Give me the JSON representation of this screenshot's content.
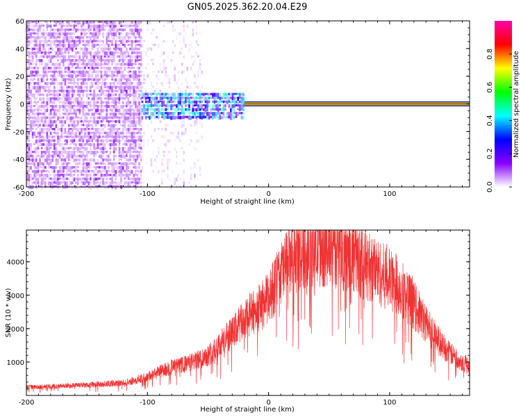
{
  "page": {
    "title": "GN05.2025.362.20.04.E29"
  },
  "chart_data": [
    {
      "type": "heatmap",
      "title": "GN05.2025.362.20.04.E29",
      "xlabel": "Height of straight line (km)",
      "ylabel": "Frequency (Hz)",
      "xlim": [
        -200,
        166
      ],
      "ylim": [
        -60,
        60
      ],
      "xticks": [
        -200,
        -100,
        0,
        100
      ],
      "xtick_labels": [
        "-200",
        "-100",
        "0",
        "100"
      ],
      "yticks": [
        -60,
        -40,
        -20,
        0,
        20,
        40,
        60
      ],
      "ytick_labels": [
        "-60",
        "-40",
        "-20",
        "0",
        "20",
        "40",
        "60"
      ],
      "grid": false,
      "colorbar": {
        "label": "Normalized spectral amplitude",
        "range": [
          0,
          1
        ],
        "ticks": [
          0.0,
          0.2,
          0.4,
          0.6,
          0.8
        ],
        "tick_labels": [
          "0.0",
          "0.2",
          "0.4",
          "0.6",
          "0.8"
        ],
        "colormap": [
          "#ffffff",
          "#8800ff",
          "#0000ff",
          "#00ffff",
          "#00ff00",
          "#ffff00",
          "#ff0000",
          "#ff00aa"
        ]
      },
      "regions": [
        {
          "name": "noise",
          "x_range": [
            -200,
            -105
          ],
          "y_range": [
            -60,
            60
          ],
          "amplitude": 0.08,
          "density": 0.85
        },
        {
          "name": "sparse-noise",
          "x_range": [
            -105,
            -55
          ],
          "y_range": [
            -60,
            60
          ],
          "amplitude": 0.03,
          "density": 0.2
        },
        {
          "name": "band-scatter",
          "x_range": [
            -105,
            -20
          ],
          "y_range": [
            -10,
            8
          ],
          "amplitude": 0.3,
          "density": 0.9
        },
        {
          "name": "signal-line",
          "x_range": [
            -20,
            166
          ],
          "y_range": [
            -1,
            1
          ],
          "amplitude": 0.95,
          "density": 1.0
        }
      ]
    },
    {
      "type": "line",
      "xlabel": "Height of straight line (km)",
      "ylabel": "SNR (10 * v/v)",
      "xlim": [
        -200,
        166
      ],
      "ylim": [
        0,
        4950
      ],
      "xticks": [
        -200,
        -100,
        0,
        100
      ],
      "xtick_labels": [
        "-200",
        "-100",
        "0",
        "100"
      ],
      "yticks": [
        1000,
        2000,
        3000,
        4000
      ],
      "ytick_labels": [
        "1000",
        "2000",
        "3000",
        "4000"
      ],
      "grid": false,
      "color": "#ee3333",
      "x": [
        -200,
        -180,
        -160,
        -140,
        -120,
        -110,
        -100,
        -90,
        -80,
        -70,
        -60,
        -50,
        -40,
        -30,
        -20,
        -10,
        0,
        10,
        20,
        30,
        40,
        50,
        60,
        70,
        80,
        90,
        100,
        110,
        120,
        130,
        140,
        150,
        160,
        166
      ],
      "values": [
        240,
        270,
        300,
        330,
        380,
        450,
        560,
        720,
        840,
        920,
        1040,
        1200,
        1550,
        1850,
        2250,
        2550,
        2900,
        3650,
        4100,
        4350,
        4450,
        4420,
        4300,
        4150,
        3900,
        3700,
        3450,
        3200,
        2700,
        2150,
        1650,
        1250,
        1000,
        900
      ]
    }
  ]
}
